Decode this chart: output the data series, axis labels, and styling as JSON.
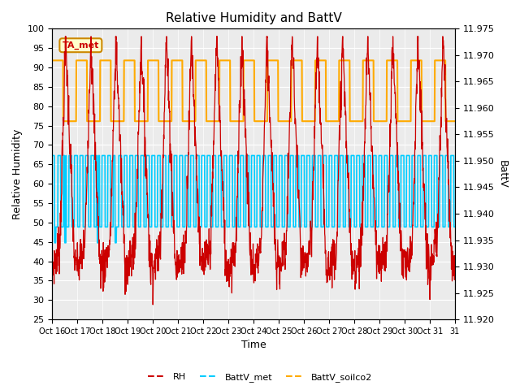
{
  "title": "Relative Humidity and BattV",
  "xlabel": "Time",
  "ylabel_left": "Relative Humidity",
  "ylabel_right": "BattV",
  "ylim_left": [
    25,
    100
  ],
  "ylim_right": [
    11.92,
    11.975
  ],
  "yticks_left": [
    25,
    30,
    35,
    40,
    45,
    50,
    55,
    60,
    65,
    70,
    75,
    80,
    85,
    90,
    95,
    100
  ],
  "yticks_right": [
    11.92,
    11.925,
    11.93,
    11.935,
    11.94,
    11.945,
    11.95,
    11.955,
    11.96,
    11.965,
    11.97,
    11.975
  ],
  "xtick_labels": [
    "Oct 16",
    "Oct 17",
    "Oct 18",
    "Oct 19",
    "Oct 20",
    "Oct 21",
    "Oct 22",
    "Oct 23",
    "Oct 24",
    "Oct 25",
    "Oct 26",
    "Oct 27",
    "Oct 28",
    "Oct 29",
    "Oct 30",
    "Oct 31",
    "31"
  ],
  "color_rh": "#cc0000",
  "color_battv_met": "#00ccff",
  "color_battv_soilco2": "#ffaa00",
  "color_annotation_bg": "#ffffcc",
  "color_annotation_border": "#cc8800",
  "annotation_text": "TA_met",
  "annotation_color": "#cc0000",
  "legend_entries": [
    "RH",
    "BattV_met",
    "BattV_soilco2"
  ],
  "background_color": "#ffffff",
  "plot_bg_color": "#ebebeb",
  "battv_met_low": 11.9375,
  "battv_met_high": 11.951,
  "battv_soilco2_low": 11.9575,
  "battv_soilco2_high": 11.969,
  "rh_low": 39.0,
  "rh_high": 52.0,
  "soilco2_rh_low": 79.0,
  "soilco2_rh_high": 93.0
}
